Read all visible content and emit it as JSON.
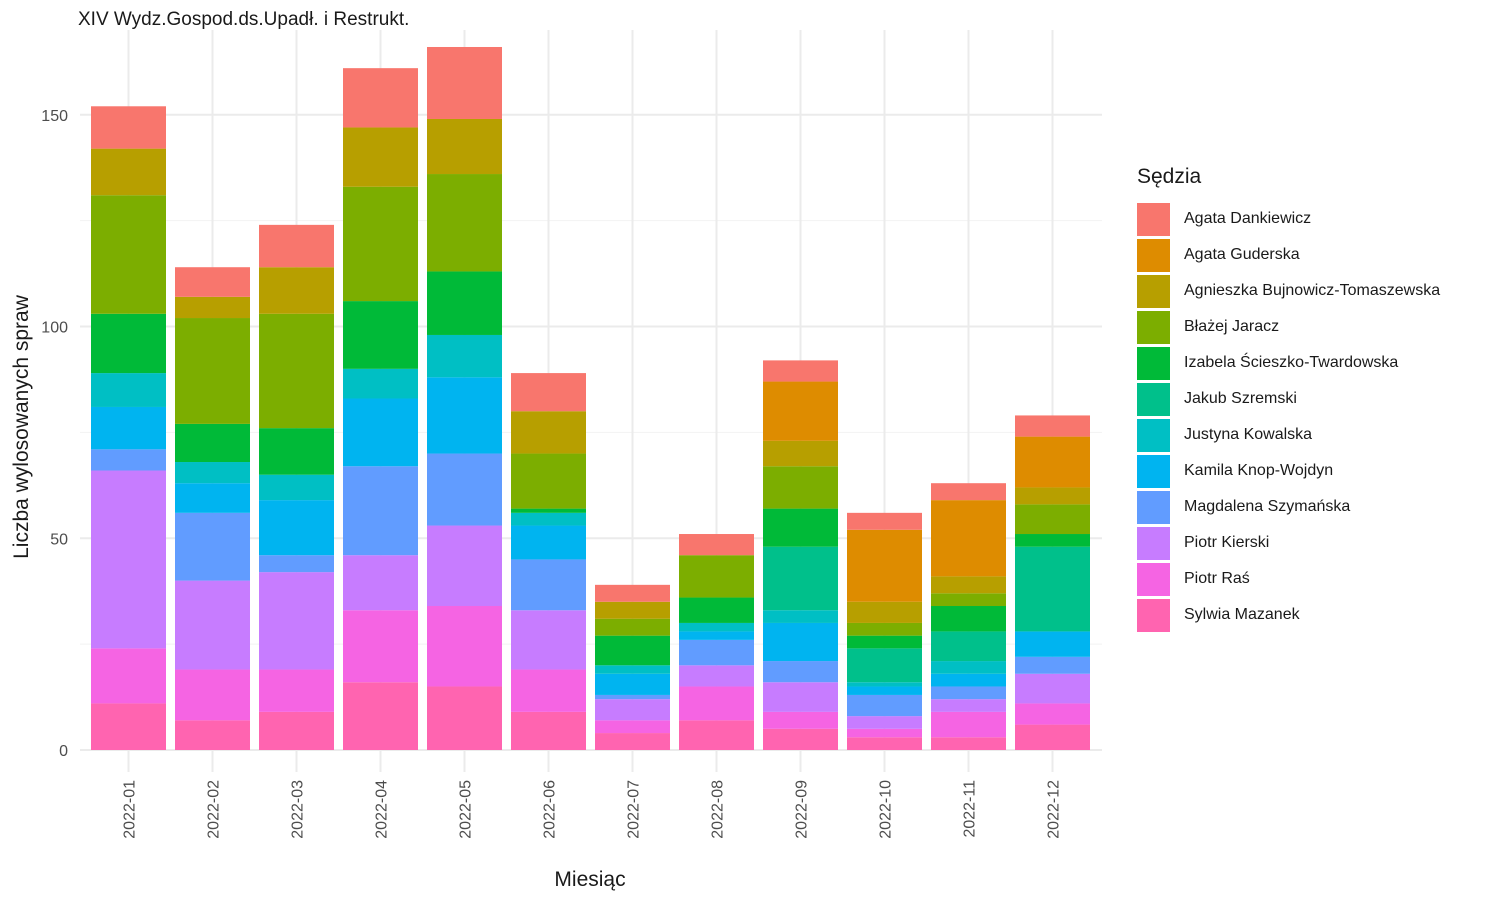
{
  "chart_data": {
    "type": "bar",
    "stacked": true,
    "title": "XIV Wydz.Gospod.ds.Upadł. i Restrukt.",
    "xlabel": "Miesiąc",
    "ylabel": "Liczba wylosowanych spraw",
    "ylim": [
      0,
      166
    ],
    "yticks": [
      0,
      50,
      100,
      150
    ],
    "grid": true,
    "legend_title": "Sędzia",
    "legend_position": "right",
    "categories": [
      "2022-01",
      "2022-02",
      "2022-03",
      "2022-04",
      "2022-05",
      "2022-06",
      "2022-07",
      "2022-08",
      "2022-09",
      "2022-10",
      "2022-11",
      "2022-12"
    ],
    "series": [
      {
        "name": "Agata Dankiewicz",
        "color": "#F8766D",
        "values": [
          10,
          7,
          10,
          14,
          17,
          9,
          4,
          5,
          5,
          4,
          4,
          5
        ]
      },
      {
        "name": "Agata Guderska",
        "color": "#DE8C00",
        "values": [
          0,
          0,
          0,
          0,
          0,
          0,
          0,
          0,
          14,
          17,
          18,
          12
        ]
      },
      {
        "name": "Agnieszka Bujnowicz-Tomaszewska",
        "color": "#B79F00",
        "values": [
          11,
          5,
          11,
          14,
          13,
          10,
          4,
          0,
          6,
          5,
          4,
          4
        ]
      },
      {
        "name": "Błażej Jaracz",
        "color": "#7CAE00",
        "values": [
          28,
          25,
          27,
          27,
          23,
          13,
          4,
          10,
          10,
          3,
          3,
          7
        ]
      },
      {
        "name": "Izabela Ścieszko-Twardowska",
        "color": "#00BA38",
        "values": [
          14,
          9,
          11,
          16,
          15,
          1,
          7,
          6,
          9,
          3,
          6,
          3
        ]
      },
      {
        "name": "Jakub Szremski",
        "color": "#00C08B",
        "values": [
          0,
          0,
          0,
          0,
          0,
          0,
          0,
          0,
          15,
          8,
          7,
          20
        ]
      },
      {
        "name": "Justyna Kowalska",
        "color": "#00BFC4",
        "values": [
          8,
          5,
          6,
          7,
          10,
          3,
          2,
          2,
          3,
          1,
          3,
          0
        ]
      },
      {
        "name": "Kamila Knop-Wojdyn",
        "color": "#00B4F0",
        "values": [
          10,
          7,
          13,
          16,
          18,
          8,
          5,
          2,
          9,
          2,
          3,
          6
        ]
      },
      {
        "name": "Magdalena Szymańska",
        "color": "#619CFF",
        "values": [
          5,
          16,
          4,
          21,
          17,
          12,
          1,
          6,
          5,
          5,
          3,
          4
        ]
      },
      {
        "name": "Piotr Kierski",
        "color": "#C77CFF",
        "values": [
          42,
          21,
          23,
          13,
          19,
          14,
          5,
          5,
          7,
          3,
          3,
          7
        ]
      },
      {
        "name": "Piotr Raś",
        "color": "#F564E3",
        "values": [
          13,
          12,
          10,
          17,
          19,
          10,
          3,
          8,
          4,
          2,
          6,
          5
        ]
      },
      {
        "name": "Sylwia Mazanek",
        "color": "#FF64B0",
        "values": [
          11,
          7,
          9,
          16,
          15,
          9,
          4,
          7,
          5,
          3,
          3,
          6
        ]
      }
    ]
  }
}
